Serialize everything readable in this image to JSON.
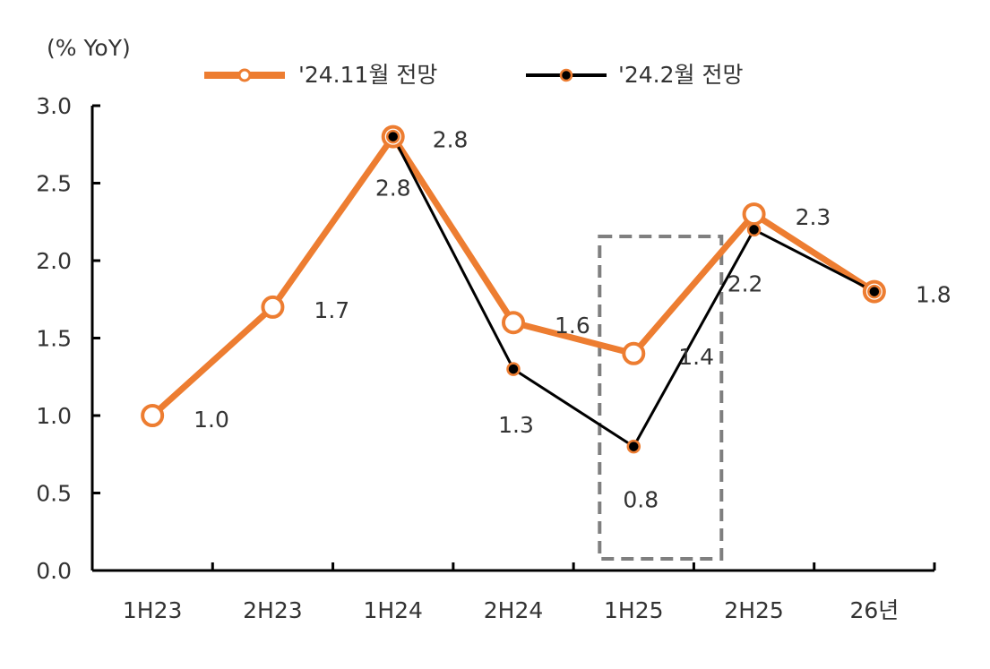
{
  "chart_data": {
    "type": "line",
    "unit_label": "(% YoY)",
    "categories": [
      "1H23",
      "2H23",
      "1H24",
      "2H24",
      "1H25",
      "2H25",
      "26년"
    ],
    "ylim": [
      0.0,
      3.0
    ],
    "yticks": [
      "0.0",
      "0.5",
      "1.0",
      "1.5",
      "2.0",
      "2.5",
      "3.0"
    ],
    "legend_position": "top",
    "highlight_box": "1H25",
    "series": [
      {
        "name": "'24.11월 전망",
        "color": "#ED7D31",
        "values": [
          1.0,
          1.7,
          2.8,
          1.6,
          1.4,
          2.3,
          1.8
        ],
        "labels": [
          "1.0",
          "1.7",
          "2.8",
          "1.6",
          "1.4",
          "2.3",
          "1.8"
        ]
      },
      {
        "name": "'24.2월 전망",
        "color": "#000000",
        "values": [
          null,
          null,
          2.8,
          1.3,
          0.8,
          2.2,
          1.8
        ],
        "labels": [
          "",
          "",
          "2.8",
          "1.3",
          "0.8",
          "2.2",
          ""
        ]
      }
    ]
  }
}
